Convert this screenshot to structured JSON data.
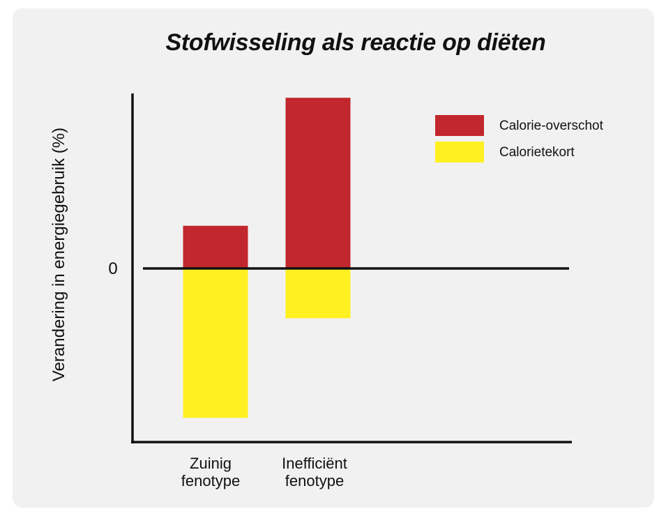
{
  "chart_data": {
    "type": "bar",
    "title": "Stofwisseling als reactie op diëten",
    "ylabel": "Verandering in energiegebruik (%)",
    "xlabel": "",
    "zero_label": "0",
    "categories": [
      [
        "Zuinig",
        "fenotype"
      ],
      [
        "Inefficiënt",
        "fenotype"
      ]
    ],
    "series": [
      {
        "name": "Calorie-overschot",
        "color": "#c1272d",
        "values": [
          6,
          24
        ]
      },
      {
        "name": "Calorietekort",
        "color": "#fff021",
        "values": [
          -21,
          -7
        ]
      }
    ],
    "ylim": [
      -24,
      24.5
    ],
    "grid": false,
    "legend_position": "top-right"
  }
}
